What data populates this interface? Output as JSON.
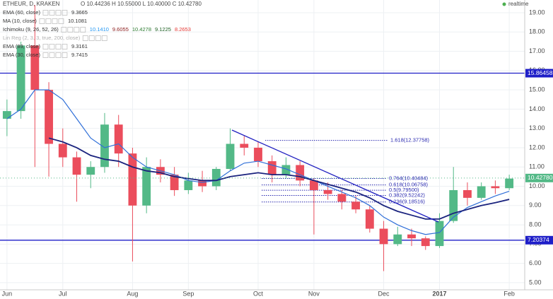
{
  "header": {
    "symbol": "ETHEUR, D, KRAKEN",
    "ohlc": "O 10.44236 H 10.55000 L 10.40000 C 10.42780",
    "realtime": "realtime"
  },
  "legend": [
    {
      "name": "EMA (60, close)",
      "values": [
        "9.3665"
      ],
      "colors": [
        "#333333"
      ]
    },
    {
      "name": "MA (10, close)",
      "values": [
        "10.1081"
      ],
      "colors": [
        "#333333"
      ]
    },
    {
      "name": "Ichimoku (9, 26, 52, 26)",
      "values": [
        "10.1410",
        "9.6055",
        "10.4278",
        "9.1225",
        "8.2653"
      ],
      "colors": [
        "#2196f3",
        "#8b1a1a",
        "#2e7d32",
        "#1b5e20",
        "#e53935"
      ]
    },
    {
      "name": "Lin Reg (2, 3, 3, true, 200, close)",
      "values": [],
      "colors": []
    },
    {
      "name": "EMA (89, close)",
      "values": [
        "9.3161"
      ],
      "colors": [
        "#333333"
      ]
    },
    {
      "name": "EMA (30, close)",
      "values": [
        "9.7415"
      ],
      "colors": [
        "#333333"
      ]
    }
  ],
  "chart_data": {
    "type": "candlestick",
    "categories": [
      "Jun",
      null,
      null,
      null,
      "Jul",
      null,
      null,
      null,
      null,
      "Aug",
      null,
      null,
      null,
      "Sep",
      null,
      null,
      null,
      null,
      "Oct",
      null,
      null,
      null,
      "Nov",
      null,
      null,
      null,
      null,
      "Dec",
      null,
      null,
      null,
      "2017",
      null,
      null,
      null,
      null,
      "Feb"
    ],
    "open": [
      13.5,
      13.9,
      17.3,
      15.0,
      12.2,
      11.5,
      10.6,
      11.0,
      13.2,
      11.7,
      9.0,
      11.0,
      10.6,
      9.8,
      10.3,
      10.0,
      10.9,
      12.2,
      12.0,
      11.3,
      10.6,
      11.1,
      10.3,
      9.8,
      9.6,
      9.2,
      8.8,
      7.8,
      7.0,
      7.5,
      7.3,
      6.9,
      8.2,
      9.8,
      9.4,
      10.0,
      9.9
    ],
    "high": [
      14.5,
      17.5,
      19.4,
      15.4,
      13.0,
      11.8,
      11.3,
      13.8,
      13.7,
      12.0,
      11.5,
      11.4,
      11.0,
      10.7,
      10.8,
      11.0,
      13.0,
      12.6,
      12.3,
      11.6,
      11.5,
      11.3,
      10.4,
      10.2,
      9.8,
      9.5,
      9.0,
      8.2,
      7.9,
      7.8,
      7.4,
      8.6,
      11.0,
      10.2,
      10.2,
      10.3,
      10.6
    ],
    "low": [
      12.6,
      13.5,
      11.0,
      10.5,
      11.0,
      9.2,
      9.9,
      10.7,
      11.0,
      6.1,
      8.6,
      10.2,
      9.5,
      9.6,
      9.7,
      9.8,
      10.8,
      11.6,
      11.0,
      10.2,
      10.4,
      10.0,
      7.5,
      9.3,
      8.8,
      8.6,
      7.6,
      5.6,
      6.9,
      6.9,
      6.7,
      6.8,
      8.1,
      9.0,
      9.3,
      9.6,
      9.8
    ],
    "close": [
      13.9,
      17.3,
      15.0,
      12.2,
      11.5,
      10.6,
      11.0,
      13.2,
      11.7,
      9.0,
      11.0,
      10.6,
      9.8,
      10.3,
      10.0,
      10.9,
      12.2,
      12.0,
      11.3,
      10.6,
      11.1,
      10.3,
      9.8,
      9.6,
      9.2,
      8.8,
      7.8,
      7.0,
      7.5,
      7.3,
      6.9,
      8.2,
      9.8,
      9.4,
      10.0,
      9.9,
      10.4
    ],
    "up_color": "#53b987",
    "down_color": "#eb4d5c",
    "series": [
      {
        "color": "#2f6fd8",
        "values": [
          13.5,
          14,
          15,
          15,
          14.5,
          13.5,
          12.5,
          12,
          12.2,
          11.5,
          11,
          10.8,
          10.6,
          10.3,
          10.2,
          10.3,
          10.8,
          11.2,
          11.3,
          11.1,
          10.9,
          10.6,
          10.3,
          10,
          9.7,
          9.4,
          9.0,
          8.4,
          8.0,
          7.7,
          7.5,
          7.6,
          8.4,
          8.9,
          9.2,
          9.5,
          9.74
        ]
      },
      {
        "color": "#1a237e",
        "values": [
          null,
          null,
          null,
          12.5,
          12.3,
          12.0,
          11.6,
          11.4,
          11.3,
          11.0,
          10.8,
          10.7,
          10.5,
          10.4,
          10.3,
          10.3,
          10.5,
          10.6,
          10.7,
          10.6,
          10.6,
          10.5,
          10.3,
          10.1,
          9.9,
          9.7,
          9.4,
          9.0,
          8.7,
          8.5,
          8.3,
          8.3,
          8.6,
          8.8,
          9.0,
          9.15,
          9.32
        ]
      }
    ],
    "ylim": [
      4.63,
      19.66
    ],
    "yticks": [
      {
        "value": 5,
        "label": "5.00"
      },
      {
        "value": 6,
        "label": "6.00"
      },
      {
        "value": 7,
        "label": "7.00"
      },
      {
        "value": 8,
        "label": "8.00"
      },
      {
        "value": 9,
        "label": "9.00"
      },
      {
        "value": 10,
        "label": "10.00"
      },
      {
        "value": 11,
        "label": "11.00"
      },
      {
        "value": 12,
        "label": "12.00"
      },
      {
        "value": 13,
        "label": "13.00"
      },
      {
        "value": 14,
        "label": "14.00"
      },
      {
        "value": 15,
        "label": "15.00"
      },
      {
        "value": 16,
        "label": "16.00"
      },
      {
        "value": 17,
        "label": "17.00"
      },
      {
        "value": 18,
        "label": "18.00"
      },
      {
        "value": 19,
        "label": "19.00"
      }
    ],
    "hlines": [
      15.86458,
      7.20374
    ],
    "last_price": {
      "value": 10.4278,
      "label": "10.42780"
    },
    "fib": [
      {
        "value": 12.37758,
        "label": "1.618(12.37758)"
      },
      {
        "value": 10.40484,
        "label": "0.764(10.40484)"
      },
      {
        "value": 10.06758,
        "label": "0.618(10.06758)"
      },
      {
        "value": 9.795,
        "label": "0.5(9.79500)"
      },
      {
        "value": 9.52242,
        "label": "0.382(9.52242)"
      },
      {
        "value": 9.18516,
        "label": "0.236(9.18516)"
      }
    ],
    "grid": true
  }
}
